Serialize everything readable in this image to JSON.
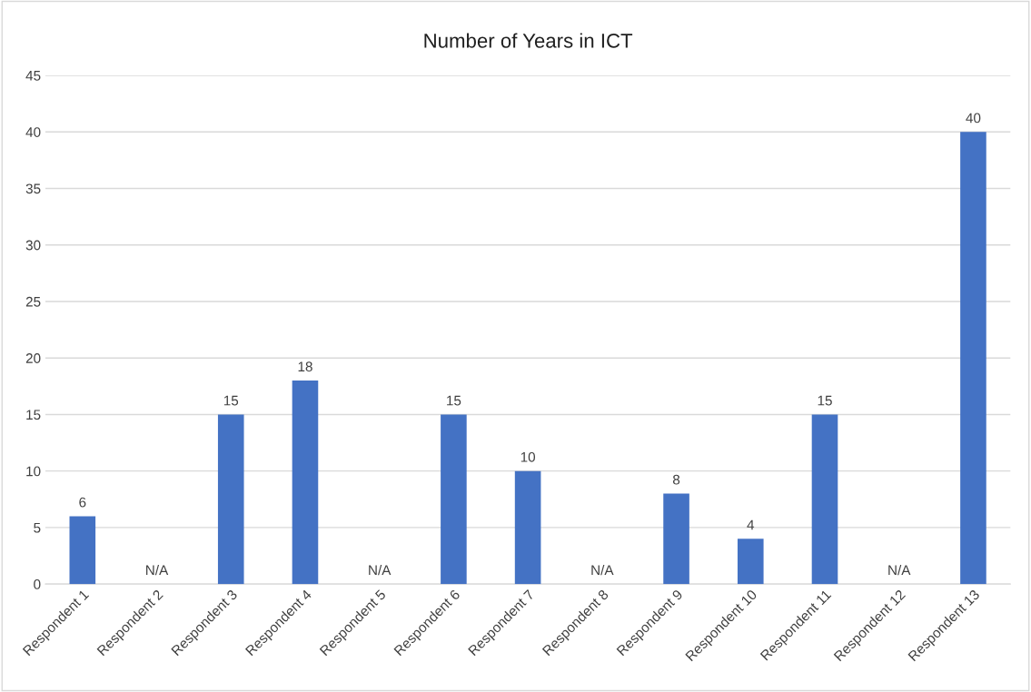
{
  "chart_data": {
    "type": "bar",
    "title": "Number of Years in ICT",
    "categories": [
      "Respondent 1",
      "Respondent 2",
      "Respondent 3",
      "Respondent 4",
      "Respondent 5",
      "Respondent 6",
      "Respondent 7",
      "Respondent 8",
      "Respondent 9",
      "Respondent 10",
      "Respondent 11",
      "Respondent 12",
      "Respondent 13"
    ],
    "values": [
      6,
      null,
      15,
      18,
      null,
      15,
      10,
      null,
      8,
      4,
      15,
      null,
      40
    ],
    "value_labels": [
      "6",
      "N/A",
      "15",
      "18",
      "N/A",
      "15",
      "10",
      "N/A",
      "8",
      "4",
      "15",
      "N/A",
      "40"
    ],
    "color": "#4472c4",
    "ylim": [
      0,
      45
    ],
    "yticks": [
      0,
      5,
      10,
      15,
      20,
      25,
      30,
      35,
      40,
      45
    ],
    "grid": "y",
    "legend": false
  }
}
